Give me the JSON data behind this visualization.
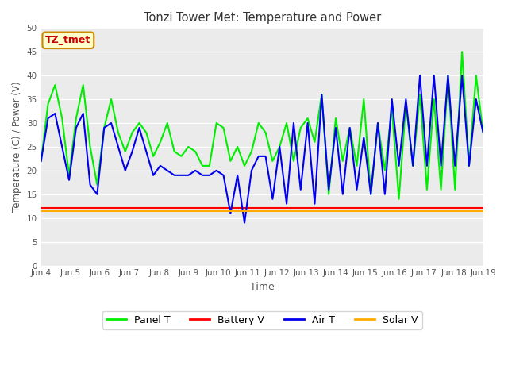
{
  "title": "Tonzi Tower Met: Temperature and Power",
  "xlabel": "Time",
  "ylabel": "Temperature (C) / Power (V)",
  "ylim": [
    0,
    50
  ],
  "yticks": [
    0,
    5,
    10,
    15,
    20,
    25,
    30,
    35,
    40,
    45,
    50
  ],
  "fig_bg": "#ffffff",
  "plot_bg": "#ebebeb",
  "tz_label": "TZ_tmet",
  "tz_bg": "#ffffcc",
  "tz_border": "#cc8800",
  "tz_text": "#cc0000",
  "legend_labels": [
    "Panel T",
    "Battery V",
    "Air T",
    "Solar V"
  ],
  "legend_colors": [
    "#00ee00",
    "#ff0000",
    "#0000ee",
    "#ffaa00"
  ],
  "x_tick_labels": [
    "Jun 4",
    "Jun 5",
    "Jun 6",
    "Jun 7",
    "Jun 8",
    "Jun 9",
    "Jun 10",
    "Jun 11",
    "Jun 12",
    "Jun 13",
    "Jun 14",
    "Jun 15",
    "Jun 16",
    "Jun 17",
    "Jun 18",
    "Jun 19"
  ],
  "panel_t": [
    22,
    34,
    38,
    31,
    19,
    31,
    38,
    25,
    17,
    29,
    35,
    28,
    24,
    28,
    30,
    28,
    23,
    26,
    30,
    24,
    23,
    25,
    24,
    21,
    21,
    30,
    29,
    22,
    25,
    21,
    24,
    30,
    28,
    22,
    25,
    30,
    22,
    29,
    31,
    26,
    36,
    15,
    31,
    22,
    29,
    21,
    35,
    15,
    30,
    20,
    33,
    14,
    34,
    21,
    36,
    16,
    35,
    16,
    40,
    16,
    45,
    21,
    40,
    28
  ],
  "air_t": [
    22,
    31,
    32,
    25,
    18,
    29,
    32,
    17,
    15,
    29,
    30,
    25,
    20,
    24,
    29,
    24,
    19,
    21,
    20,
    19,
    19,
    19,
    20,
    19,
    19,
    20,
    19,
    11,
    19,
    9,
    20,
    23,
    23,
    14,
    25,
    13,
    30,
    16,
    30,
    13,
    36,
    16,
    29,
    15,
    29,
    16,
    27,
    15,
    30,
    15,
    35,
    21,
    35,
    21,
    40,
    21,
    40,
    21,
    40,
    21,
    40,
    21,
    35,
    28
  ],
  "battery_v": [
    12.2,
    12.2,
    12.2,
    12.2,
    12.2,
    12.2,
    12.2,
    12.2,
    12.2,
    12.2,
    12.2,
    12.2,
    12.2,
    12.2,
    12.2,
    12.2,
    12.2,
    12.2,
    12.2,
    12.2,
    12.2,
    12.2,
    12.2,
    12.2,
    12.2,
    12.2,
    12.2,
    12.2,
    12.2,
    12.2,
    12.2,
    12.2,
    12.2,
    12.2,
    12.2,
    12.2,
    12.2,
    12.2,
    12.2,
    12.2,
    12.2,
    12.2,
    12.2,
    12.2,
    12.2,
    12.2,
    12.2,
    12.2,
    12.2,
    12.2,
    12.2,
    12.2,
    12.2,
    12.2,
    12.2,
    12.2,
    12.2,
    12.2,
    12.2,
    12.2,
    12.2,
    12.2,
    12.2,
    12.2
  ],
  "solar_v": [
    11.5,
    11.5,
    11.5,
    11.5,
    11.5,
    11.5,
    11.5,
    11.5,
    11.5,
    11.5,
    11.5,
    11.5,
    11.5,
    11.5,
    11.5,
    11.5,
    11.5,
    11.5,
    11.5,
    11.5,
    11.5,
    11.5,
    11.5,
    11.5,
    11.5,
    11.5,
    11.5,
    11.5,
    11.5,
    11.5,
    11.5,
    11.5,
    11.5,
    11.5,
    11.5,
    11.5,
    11.5,
    11.5,
    11.5,
    11.5,
    11.5,
    11.5,
    11.5,
    11.5,
    11.5,
    11.5,
    11.5,
    11.5,
    11.5,
    11.5,
    11.5,
    11.5,
    11.5,
    11.5,
    11.5,
    11.5,
    11.5,
    11.5,
    11.5,
    11.5,
    11.5,
    11.5,
    11.5,
    11.5
  ]
}
